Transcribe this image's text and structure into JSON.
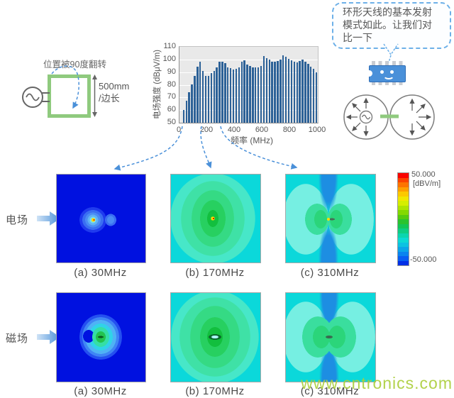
{
  "antenna_diagram": {
    "flip_label": "位置被90度翻转",
    "size_line1": "500mm",
    "size_line2": "/边长"
  },
  "chart_data": {
    "type": "bar",
    "title": "",
    "xlabel": "频率 (MHz)",
    "ylabel": "电场强度 (dBμV/m)",
    "x_unit": "MHz",
    "y_unit": "dBμV/m",
    "ylim": [
      50,
      110
    ],
    "xlim": [
      0,
      1000
    ],
    "yticks": [
      110,
      100,
      90,
      80,
      70,
      60,
      50
    ],
    "xticks": [
      0,
      200,
      400,
      600,
      800,
      1000
    ],
    "grid": true,
    "legend": "none",
    "x_start_mhz": 30,
    "x_step_mhz": 20,
    "values": [
      60,
      67.5,
      74,
      80.5,
      87,
      94.5,
      98.5,
      91,
      87,
      87,
      89.5,
      91,
      94,
      98,
      98.5,
      97,
      93.5,
      93,
      92,
      92.5,
      93.5,
      98.5,
      99.5,
      96,
      95,
      94,
      93.5,
      93.5,
      95,
      102.5,
      101,
      100,
      98,
      98,
      99,
      100,
      103,
      102,
      100.5,
      99.5,
      98.5,
      97.5,
      99,
      100,
      98,
      96.5,
      94.5,
      92.5,
      90
    ]
  },
  "speech_bubble": {
    "text": "环形天线的基本发射模式如此。让我们对比一下"
  },
  "rows": [
    {
      "label": "电场"
    },
    {
      "label": "磁场"
    }
  ],
  "captions": [
    "(a) 30MHz",
    "(b) 170MHz",
    "(c) 310MHz"
  ],
  "colorbar": {
    "max_label": "50.000",
    "unit_label": "[dBV/m]",
    "min_label": "-50.000",
    "colors": [
      "#f90400",
      "#fb4200",
      "#fd7400",
      "#fe9f00",
      "#fcc900",
      "#f2e600",
      "#d5ee00",
      "#aee400",
      "#83d900",
      "#54cb0e",
      "#2ac32e",
      "#13c655",
      "#0ecd82",
      "#0bd5af",
      "#0cd9d4",
      "#0cc2e1",
      "#0ba5e9",
      "#0a84ef",
      "#085ef3",
      "#0330e6"
    ]
  },
  "watermark": "www.cntronics.com",
  "colors": {
    "accent_blue": "#4a90d9",
    "loop_green": "#8fca7e",
    "bar_blue": "#2c6197"
  }
}
